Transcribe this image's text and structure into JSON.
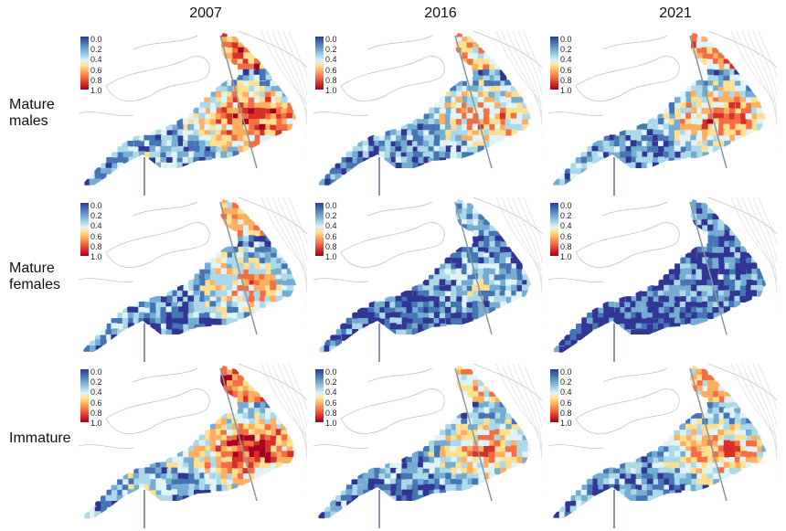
{
  "columns": [
    "2007",
    "2016",
    "2021"
  ],
  "rows": [
    "Mature\nmales",
    "Mature\nfemales",
    "Immature"
  ],
  "legend_ticks": [
    "0.0",
    "0.2",
    "0.4",
    "0.6",
    "0.8",
    "1.0"
  ],
  "colors": {
    "low": "#313695",
    "mid": "#fee090",
    "high": "#a50026",
    "coast": "#b8bcc4",
    "lines": "#8a95a5"
  },
  "chart_data": {
    "type": "heatmap",
    "description_levels": {
      "2007": {
        "Mature males": 0.8,
        "Mature females": 0.6,
        "Immature": 0.85
      },
      "2016": {
        "Mature males": 0.65,
        "Mature females": 0.35,
        "Immature": 0.65
      },
      "2021": {
        "Mature males": 0.7,
        "Mature females": 0.2,
        "Immature": 0.65
      }
    },
    "scale": [
      0.0,
      1.0
    ]
  }
}
